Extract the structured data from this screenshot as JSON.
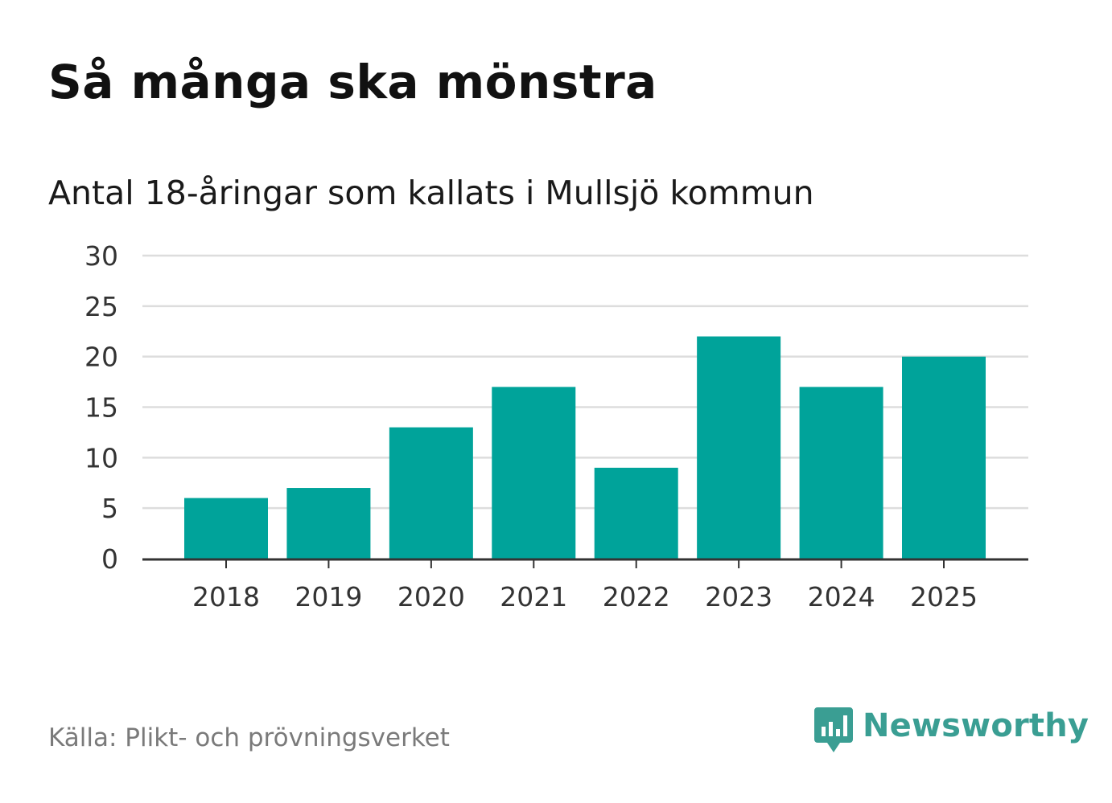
{
  "header": {
    "title": "Så många ska mönstra",
    "subtitle": "Antal 18-åringar som kallats i Mullsjö kommun"
  },
  "footer": {
    "source": "Källa: Plikt- och prövningsverket",
    "brand": "Newsworthy"
  },
  "colors": {
    "bar": "#00A39A",
    "grid": "#dddddd",
    "axis": "#333333",
    "brand": "#3a9e93"
  },
  "icons": {
    "logo": "bar-chart-speech-bubble-icon"
  },
  "chart_data": {
    "type": "bar",
    "title": "Så många ska mönstra",
    "subtitle": "Antal 18-åringar som kallats i Mullsjö kommun",
    "categories": [
      "2018",
      "2019",
      "2020",
      "2021",
      "2022",
      "2023",
      "2024",
      "2025"
    ],
    "values": [
      6,
      7,
      13,
      17,
      9,
      22,
      17,
      20
    ],
    "ylim": [
      0,
      30
    ],
    "yticks": [
      0,
      5,
      10,
      15,
      20,
      25,
      30
    ],
    "xlabel": "",
    "ylabel": "",
    "grid": true,
    "legend": "none"
  }
}
